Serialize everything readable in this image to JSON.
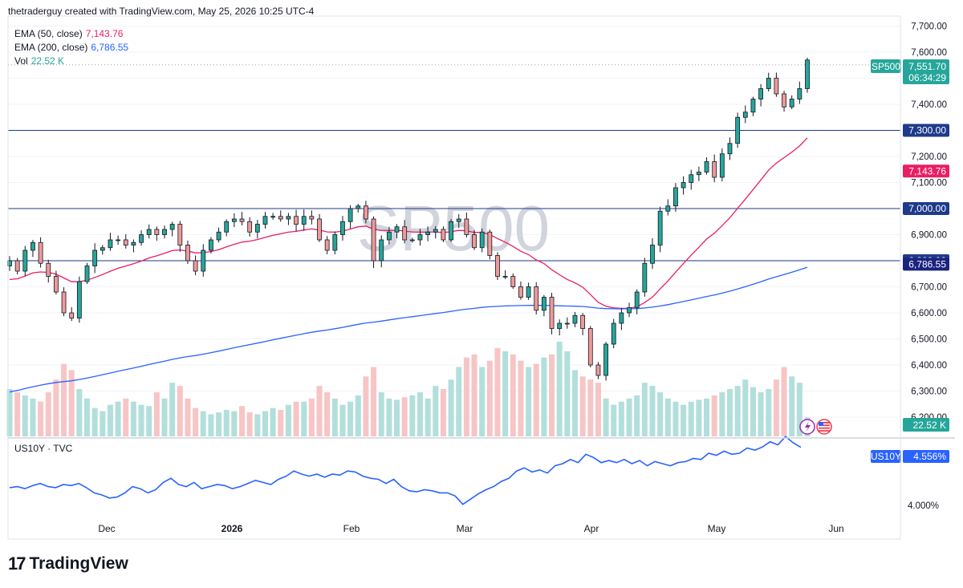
{
  "header": {
    "text": "thetraderguy created with TradingView.com, May 25, 2026 10:25 UTC-4"
  },
  "legend": {
    "ema50": {
      "label": "EMA (50, close)",
      "value": "7,143.76",
      "color": "#e91e63"
    },
    "ema200": {
      "label": "EMA (200, close)",
      "value": "6,786.55",
      "color": "#2962ff"
    },
    "vol": {
      "label": "Vol",
      "value": "22.52 K",
      "color": "#26a69a"
    }
  },
  "watermark": "SP500",
  "price_badge": {
    "symbol": "SP500",
    "price": "7,551.70",
    "countdown": "06:34:29"
  },
  "level_tags": [
    {
      "label": "7,300.00",
      "value": 7300,
      "kind": "hline"
    },
    {
      "label": "7,143.76",
      "value": 7143.76,
      "kind": "ema50"
    },
    {
      "label": "7,000.00",
      "value": 7000,
      "kind": "hline"
    },
    {
      "label": "6,800.00",
      "value": 6800,
      "kind": "hline"
    },
    {
      "label": "6,786.55",
      "value": 6786.55,
      "kind": "ema200"
    }
  ],
  "vol_tag": "22.52 K",
  "sub_pane": {
    "legend": "US10Y · TVC",
    "symbol": "US10Y",
    "value": "4.556%",
    "tick_label": "4.000%",
    "color": "#2962ff"
  },
  "branding": {
    "name": "TradingView"
  },
  "chart_data": {
    "type": "candlestick",
    "symbol": "SP500",
    "ylim": [
      6200,
      7700
    ],
    "y_ticks": [
      "7,700.00",
      "7,600.00",
      "7,500.00",
      "7,400.00",
      "7,300.00",
      "7,200.00",
      "7,100.00",
      "7,000.00",
      "6,900.00",
      "6,800.00",
      "6,700.00",
      "6,600.00",
      "6,500.00",
      "6,400.00",
      "6,300.00",
      "6,200.00"
    ],
    "x_ticks": [
      "Dec",
      "2026",
      "Feb",
      "Mar",
      "Apr",
      "May",
      "Jun"
    ],
    "horizontal_lines": [
      7300,
      7000,
      6800
    ],
    "closes": [
      6800,
      6760,
      6840,
      6870,
      6790,
      6740,
      6680,
      6600,
      6580,
      6720,
      6780,
      6840,
      6850,
      6880,
      6880,
      6860,
      6870,
      6900,
      6920,
      6900,
      6920,
      6940,
      6860,
      6800,
      6760,
      6840,
      6880,
      6910,
      6950,
      6960,
      6950,
      6910,
      6940,
      6970,
      6970,
      6960,
      6970,
      6940,
      6970,
      6960,
      6880,
      6840,
      6900,
      6950,
      7000,
      7010,
      6960,
      6800,
      6880,
      6910,
      6930,
      6880,
      6880,
      6900,
      6910,
      6920,
      6880,
      6950,
      6960,
      6900,
      6850,
      6910,
      6820,
      6740,
      6740,
      6700,
      6660,
      6700,
      6610,
      6660,
      6540,
      6560,
      6560,
      6590,
      6540,
      6400,
      6360,
      6480,
      6560,
      6600,
      6620,
      6680,
      6790,
      6860,
      6990,
      7010,
      7080,
      7100,
      7130,
      7140,
      7180,
      7120,
      7210,
      7250,
      7350,
      7370,
      7420,
      7460,
      7500,
      7440,
      7390,
      7420,
      7460,
      7570
    ],
    "ema50_end": 7143.76,
    "ema200_end": 6786.55,
    "volume": [
      75,
      70,
      65,
      60,
      55,
      70,
      90,
      115,
      105,
      75,
      60,
      45,
      40,
      50,
      55,
      60,
      55,
      50,
      48,
      70,
      60,
      85,
      80,
      60,
      45,
      40,
      35,
      38,
      42,
      40,
      48,
      38,
      35,
      40,
      45,
      42,
      50,
      55,
      55,
      60,
      80,
      70,
      60,
      50,
      55,
      65,
      95,
      110,
      70,
      60,
      58,
      62,
      65,
      70,
      60,
      80,
      75,
      90,
      110,
      125,
      130,
      110,
      120,
      140,
      135,
      130,
      120,
      110,
      115,
      125,
      130,
      150,
      135,
      105,
      95,
      90,
      85,
      60,
      50,
      55,
      60,
      65,
      85,
      80,
      70,
      60,
      55,
      50,
      55,
      58,
      60,
      65,
      70,
      75,
      80,
      90,
      78,
      70,
      75,
      90,
      110,
      95,
      85,
      30
    ],
    "volume_unit": "K",
    "us10y": {
      "y_tick": "4.000%",
      "last": "4.556%",
      "values": [
        4.17,
        4.18,
        4.16,
        4.19,
        4.21,
        4.18,
        4.17,
        4.2,
        4.19,
        4.21,
        4.17,
        4.12,
        4.1,
        4.07,
        4.08,
        4.12,
        4.18,
        4.16,
        4.12,
        4.15,
        4.22,
        4.26,
        4.2,
        4.18,
        4.22,
        4.16,
        4.18,
        4.2,
        4.19,
        4.16,
        4.18,
        4.21,
        4.24,
        4.22,
        4.2,
        4.25,
        4.28,
        4.33,
        4.3,
        4.28,
        4.3,
        4.27,
        4.3,
        4.29,
        4.33,
        4.32,
        4.28,
        4.26,
        4.25,
        4.21,
        4.25,
        4.18,
        4.14,
        4.13,
        4.15,
        4.14,
        4.12,
        4.12,
        4.09,
        4.01,
        4.06,
        4.11,
        4.15,
        4.18,
        4.23,
        4.26,
        4.33,
        4.36,
        4.32,
        4.34,
        4.31,
        4.38,
        4.4,
        4.44,
        4.41,
        4.49,
        4.46,
        4.41,
        4.43,
        4.41,
        4.44,
        4.4,
        4.43,
        4.38,
        4.42,
        4.4,
        4.38,
        4.41,
        4.42,
        4.45,
        4.44,
        4.5,
        4.48,
        4.52,
        4.49,
        4.5,
        4.55,
        4.53,
        4.56,
        4.61,
        4.58,
        4.66,
        4.6,
        4.556
      ]
    }
  }
}
